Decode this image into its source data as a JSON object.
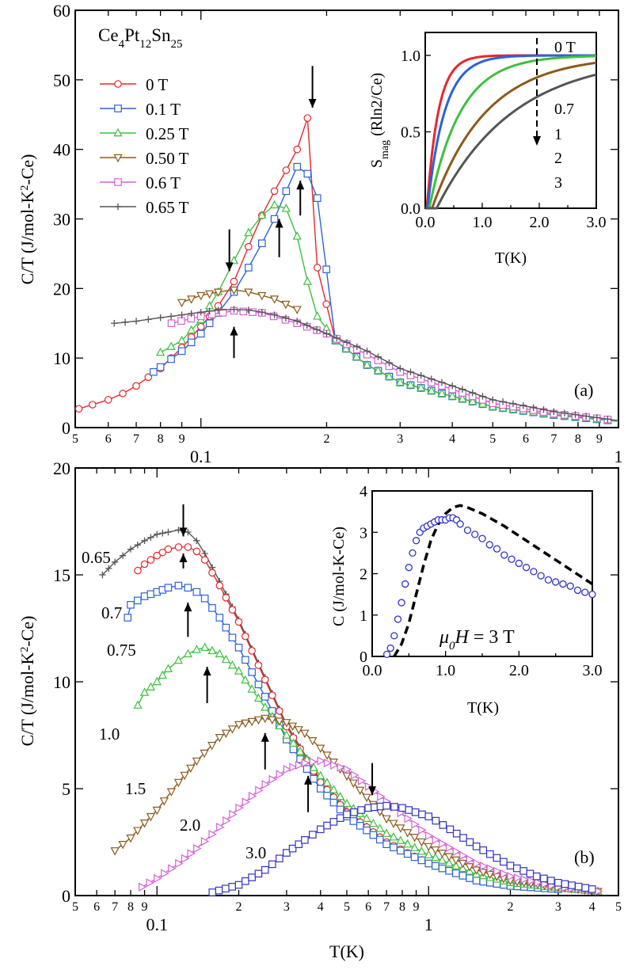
{
  "chart_data": [
    {
      "id": "panel-a",
      "type": "line",
      "panel_label": "(a)",
      "compound": "Ce4Pt12Sn25",
      "xlabel": "",
      "ylabel": "C/T (J/mol-K²-Ce)",
      "xscale": "log",
      "xlim": [
        0.05,
        1.0
      ],
      "ylim": [
        0,
        60
      ],
      "yticks": [
        0,
        10,
        20,
        30,
        40,
        50,
        60
      ],
      "xticks_major": [
        "0.1",
        "1"
      ],
      "xticks_minor": [
        "5",
        "6",
        "7",
        "8",
        "9",
        "2",
        "3",
        "4",
        "5",
        "6",
        "7",
        "8",
        "9"
      ],
      "series": [
        {
          "name": "0 T",
          "color": "#e8262a",
          "marker": "circle",
          "x": [
            0.051,
            0.055,
            0.06,
            0.065,
            0.07,
            0.08,
            0.09,
            0.1,
            0.11,
            0.12,
            0.13,
            0.14,
            0.15,
            0.16,
            0.17,
            0.18,
            0.19,
            0.21,
            0.25,
            0.3,
            0.4,
            0.5,
            0.7,
            1.0
          ],
          "y": [
            2.7,
            3.3,
            4.0,
            4.9,
            6.0,
            8.5,
            11.5,
            14.5,
            17.5,
            21.0,
            26.0,
            30.5,
            34.0,
            37.0,
            40.0,
            44.5,
            23.0,
            12.5,
            9.0,
            6.5,
            4.5,
            3.0,
            1.8,
            0.9
          ]
        },
        {
          "name": "0.1 T",
          "color": "#2b62d8",
          "marker": "square",
          "x": [
            0.077,
            0.08,
            0.09,
            0.1,
            0.11,
            0.12,
            0.13,
            0.14,
            0.15,
            0.16,
            0.17,
            0.18,
            0.19,
            0.21,
            0.25,
            0.3,
            0.4,
            0.5,
            0.7,
            1.0
          ],
          "y": [
            8.0,
            8.7,
            11.0,
            13.5,
            16.5,
            19.5,
            23.0,
            26.5,
            30.0,
            34.0,
            37.5,
            36.5,
            33.0,
            12.5,
            9.0,
            6.5,
            4.5,
            3.0,
            1.8,
            0.9
          ]
        },
        {
          "name": "0.25 T",
          "color": "#3fbf3f",
          "marker": "triangle-up",
          "x": [
            0.08,
            0.09,
            0.1,
            0.11,
            0.12,
            0.13,
            0.14,
            0.15,
            0.16,
            0.17,
            0.18,
            0.19,
            0.21,
            0.25,
            0.3,
            0.4,
            0.5,
            0.7,
            1.0
          ],
          "y": [
            10.8,
            12.5,
            15.5,
            19.5,
            24.0,
            28.0,
            30.5,
            32.0,
            31.5,
            27.5,
            21.0,
            16.0,
            12.5,
            9.0,
            6.5,
            4.5,
            3.0,
            1.8,
            0.9
          ]
        },
        {
          "name": "0.50 T",
          "color": "#8b5a1b",
          "marker": "triangle-down",
          "x": [
            0.09,
            0.1,
            0.11,
            0.12,
            0.13,
            0.14,
            0.15,
            0.17
          ],
          "y": [
            18.0,
            19.0,
            19.5,
            19.8,
            19.5,
            19.0,
            18.5,
            17.0
          ]
        },
        {
          "name": "0.6 T",
          "color": "#d560d5",
          "marker": "square",
          "x": [
            0.085,
            0.1,
            0.12,
            0.14,
            0.17,
            0.2,
            0.25,
            0.3,
            0.4,
            0.5,
            0.7,
            1.0
          ],
          "y": [
            15.0,
            16.0,
            16.8,
            16.5,
            15.0,
            13.5,
            10.5,
            8.0,
            5.5,
            3.5,
            2.0,
            1.0
          ]
        },
        {
          "name": "0.65 T",
          "color": "#555555",
          "marker": "plus",
          "x": [
            0.062,
            0.07,
            0.08,
            0.09,
            0.1,
            0.11,
            0.12,
            0.13,
            0.14,
            0.15,
            0.17,
            0.2,
            0.25,
            0.3,
            0.4,
            0.5,
            0.7,
            1.0
          ],
          "y": [
            15.0,
            15.3,
            15.8,
            16.2,
            16.6,
            16.9,
            17.0,
            16.9,
            16.6,
            16.2,
            15.3,
            13.5,
            11.0,
            8.5,
            6.0,
            4.0,
            2.3,
            1.0
          ]
        }
      ],
      "arrows": [
        {
          "x": 0.185,
          "y_from": 52,
          "y_to": 46,
          "dir": "down"
        },
        {
          "x": 0.173,
          "y_from": 30.5,
          "y_to": 35.5,
          "dir": "up"
        },
        {
          "x": 0.154,
          "y_from": 24.5,
          "y_to": 30,
          "dir": "up"
        },
        {
          "x": 0.117,
          "y_from": 28.5,
          "y_to": 22.5,
          "dir": "down"
        },
        {
          "x": 0.12,
          "y_from": 10,
          "y_to": 14.5,
          "dir": "up"
        }
      ],
      "inset": {
        "xlabel": "T(K)",
        "ylabel": "S_mag (Rln2/Ce)",
        "xlim": [
          0,
          3.0
        ],
        "ylim": [
          0,
          1.15
        ],
        "xticks": [
          "0.0",
          "1.0",
          "2.0",
          "3.0"
        ],
        "yticks": [
          "0.0",
          "0.5",
          "1.0"
        ],
        "field_labels": [
          "0 T",
          "0.7",
          "1",
          "2",
          "3"
        ],
        "curves": [
          {
            "name": "0 T",
            "color": "#e8262a",
            "T0": 0.03,
            "tau": 0.2
          },
          {
            "name": "0.7",
            "color": "#2b62d8",
            "T0": 0.04,
            "tau": 0.3
          },
          {
            "name": "1",
            "color": "#3fbf3f",
            "T0": 0.07,
            "tau": 0.55
          },
          {
            "name": "2",
            "color": "#8b5a1b",
            "T0": 0.12,
            "tau": 0.95
          },
          {
            "name": "3",
            "color": "#555555",
            "T0": 0.2,
            "tau": 1.35
          }
        ]
      }
    },
    {
      "id": "panel-b",
      "type": "line",
      "panel_label": "(b)",
      "xlabel": "T(K)",
      "ylabel": "C/T (J/mol-K²-Ce)",
      "xscale": "log",
      "xlim": [
        0.05,
        5.0
      ],
      "ylim": [
        0,
        20
      ],
      "yticks": [
        0,
        5,
        10,
        15,
        20
      ],
      "xticks_major": [
        "0.1",
        "1"
      ],
      "xticks_minor": [
        "5",
        "6",
        "7",
        "8",
        "9",
        "2",
        "3",
        "4",
        "5",
        "6",
        "7",
        "8",
        "9",
        "2",
        "3",
        "4",
        "5"
      ],
      "field_labels": [
        "0.65",
        "0.7",
        "0.75",
        "1.0",
        "1.5",
        "2.0",
        "3.0"
      ],
      "series": [
        {
          "name": "0.65",
          "color": "#555555",
          "marker": "plus",
          "x": [
            0.063,
            0.07,
            0.08,
            0.09,
            0.1,
            0.11,
            0.12,
            0.13,
            0.14,
            0.15,
            0.17,
            0.2,
            0.25,
            0.3,
            0.4,
            0.5,
            0.7,
            1.0,
            1.5,
            2.0,
            3.0
          ],
          "y": [
            15.0,
            15.6,
            16.2,
            16.6,
            16.9,
            17.0,
            17.1,
            17.0,
            16.6,
            16.0,
            14.7,
            12.9,
            10.2,
            8.0,
            5.4,
            4.0,
            2.5,
            1.5,
            0.7,
            0.45,
            0.3
          ]
        },
        {
          "name": "0.7",
          "color": "#e8262a",
          "marker": "circle",
          "x": [
            0.085,
            0.09,
            0.1,
            0.11,
            0.12,
            0.13,
            0.14,
            0.15,
            0.17,
            0.2,
            0.25,
            0.3,
            0.4,
            0.5,
            0.7,
            1.0,
            1.5,
            2.0,
            3.0
          ],
          "y": [
            15.2,
            15.5,
            15.9,
            16.2,
            16.3,
            16.3,
            16.1,
            15.7,
            14.5,
            12.8,
            10.1,
            7.9,
            5.3,
            3.9,
            2.5,
            1.5,
            0.7,
            0.45,
            0.3
          ]
        },
        {
          "name": "0.75",
          "color": "#2b62d8",
          "marker": "square",
          "x": [
            0.078,
            0.08,
            0.09,
            0.1,
            0.11,
            0.12,
            0.13,
            0.14,
            0.15,
            0.17,
            0.2,
            0.25,
            0.3,
            0.4,
            0.5,
            0.7,
            1.0,
            1.5,
            2.0,
            3.0
          ],
          "y": [
            13.0,
            13.6,
            14.0,
            14.2,
            14.4,
            14.5,
            14.4,
            14.2,
            13.9,
            13.0,
            11.6,
            9.3,
            7.3,
            5.0,
            3.7,
            2.4,
            1.5,
            0.7,
            0.45,
            0.3
          ]
        },
        {
          "name": "1.0",
          "color": "#3fbf3f",
          "marker": "triangle-up",
          "x": [
            0.085,
            0.09,
            0.1,
            0.11,
            0.12,
            0.13,
            0.14,
            0.15,
            0.17,
            0.2,
            0.25,
            0.3,
            0.4,
            0.5,
            0.7,
            1.0,
            1.5,
            2.0,
            3.0,
            4.2
          ],
          "y": [
            8.9,
            9.5,
            10.0,
            10.6,
            11.0,
            11.3,
            11.5,
            11.6,
            11.3,
            10.5,
            8.8,
            7.5,
            5.6,
            4.3,
            2.9,
            1.9,
            1.0,
            0.6,
            0.35,
            0.2
          ]
        },
        {
          "name": "1.5",
          "color": "#8b5a1b",
          "marker": "triangle-down",
          "x": [
            0.07,
            0.08,
            0.09,
            0.1,
            0.12,
            0.14,
            0.17,
            0.2,
            0.25,
            0.3,
            0.35,
            0.4,
            0.5,
            0.7,
            1.0,
            1.5,
            2.0,
            3.0,
            4.2
          ],
          "y": [
            2.1,
            2.7,
            3.4,
            4.0,
            5.3,
            6.3,
            7.4,
            8.0,
            8.3,
            8.1,
            7.6,
            6.9,
            5.6,
            3.6,
            2.3,
            1.2,
            0.7,
            0.4,
            0.2
          ]
        },
        {
          "name": "2.0",
          "color": "#d560d5",
          "marker": "triangle-right",
          "x": [
            0.088,
            0.1,
            0.12,
            0.14,
            0.17,
            0.2,
            0.25,
            0.3,
            0.35,
            0.4,
            0.5,
            0.6,
            0.7,
            1.0,
            1.5,
            2.0,
            3.0,
            4.2
          ],
          "y": [
            0.4,
            0.8,
            1.5,
            2.2,
            3.2,
            4.1,
            5.2,
            5.9,
            6.2,
            6.3,
            5.9,
            5.1,
            4.4,
            2.8,
            1.5,
            0.9,
            0.4,
            0.2
          ]
        },
        {
          "name": "3.0",
          "color": "#3232c8",
          "marker": "square",
          "x": [
            0.16,
            0.2,
            0.25,
            0.3,
            0.35,
            0.4,
            0.5,
            0.6,
            0.7,
            0.8,
            1.0,
            1.2,
            1.5,
            2.0,
            2.5,
            3.0,
            4.0
          ],
          "y": [
            0.15,
            0.5,
            1.2,
            2.0,
            2.6,
            3.1,
            3.8,
            4.1,
            4.2,
            4.1,
            3.7,
            3.1,
            2.3,
            1.4,
            0.9,
            0.6,
            0.3
          ]
        }
      ],
      "arrows": [
        {
          "x": 0.125,
          "y_from": 18.3,
          "y_to": 16.8,
          "dir": "down"
        },
        {
          "x": 0.125,
          "y_from": 15.3,
          "y_to": 16.0,
          "dir": "up"
        },
        {
          "x": 0.13,
          "y_from": 12.1,
          "y_to": 13.7,
          "dir": "up"
        },
        {
          "x": 0.153,
          "y_from": 9.0,
          "y_to": 10.7,
          "dir": "up"
        },
        {
          "x": 0.25,
          "y_from": 5.9,
          "y_to": 7.6,
          "dir": "up"
        },
        {
          "x": 0.36,
          "y_from": 3.9,
          "y_to": 5.6,
          "dir": "up"
        },
        {
          "x": 0.62,
          "y_from": 6.2,
          "y_to": 4.7,
          "dir": "down"
        }
      ],
      "inset": {
        "xlabel": "T(K)",
        "ylabel": "C (J/mol-K-Ce)",
        "annotation": "μ0H = 3 T",
        "xlim": [
          0,
          3.0
        ],
        "ylim": [
          0,
          4
        ],
        "xticks": [
          "0.0",
          "1.0",
          "2.0",
          "3.0"
        ],
        "yticks": [
          "0",
          "1",
          "2",
          "3",
          "4"
        ],
        "points": {
          "color": "#3232c8",
          "x": [
            0.2,
            0.25,
            0.3,
            0.35,
            0.4,
            0.45,
            0.5,
            0.55,
            0.6,
            0.65,
            0.7,
            0.75,
            0.8,
            0.85,
            0.9,
            0.95,
            1.0,
            1.05,
            1.1,
            1.15,
            1.2,
            1.3,
            1.4,
            1.5,
            1.6,
            1.7,
            1.8,
            1.9,
            2.0,
            2.1,
            2.2,
            2.3,
            2.4,
            2.5,
            2.6,
            2.7,
            2.8,
            2.9,
            3.0
          ],
          "y": [
            0.05,
            0.2,
            0.5,
            0.9,
            1.3,
            1.75,
            2.15,
            2.5,
            2.8,
            3.0,
            3.1,
            3.15,
            3.2,
            3.25,
            3.3,
            3.3,
            3.3,
            3.35,
            3.35,
            3.3,
            3.2,
            3.05,
            2.95,
            2.85,
            2.7,
            2.6,
            2.45,
            2.35,
            2.25,
            2.15,
            2.05,
            1.95,
            1.85,
            1.8,
            1.75,
            1.7,
            1.6,
            1.55,
            1.5
          ]
        },
        "dashed": {
          "color": "#000000",
          "x": [
            0.3,
            0.4,
            0.5,
            0.6,
            0.7,
            0.8,
            0.9,
            1.0,
            1.1,
            1.2,
            1.3,
            1.5,
            1.8,
            2.1,
            2.4,
            2.7,
            3.0
          ],
          "y": [
            0.0,
            0.3,
            0.8,
            1.5,
            2.2,
            2.8,
            3.2,
            3.45,
            3.6,
            3.65,
            3.6,
            3.45,
            3.15,
            2.8,
            2.45,
            2.1,
            1.75
          ]
        }
      }
    }
  ]
}
